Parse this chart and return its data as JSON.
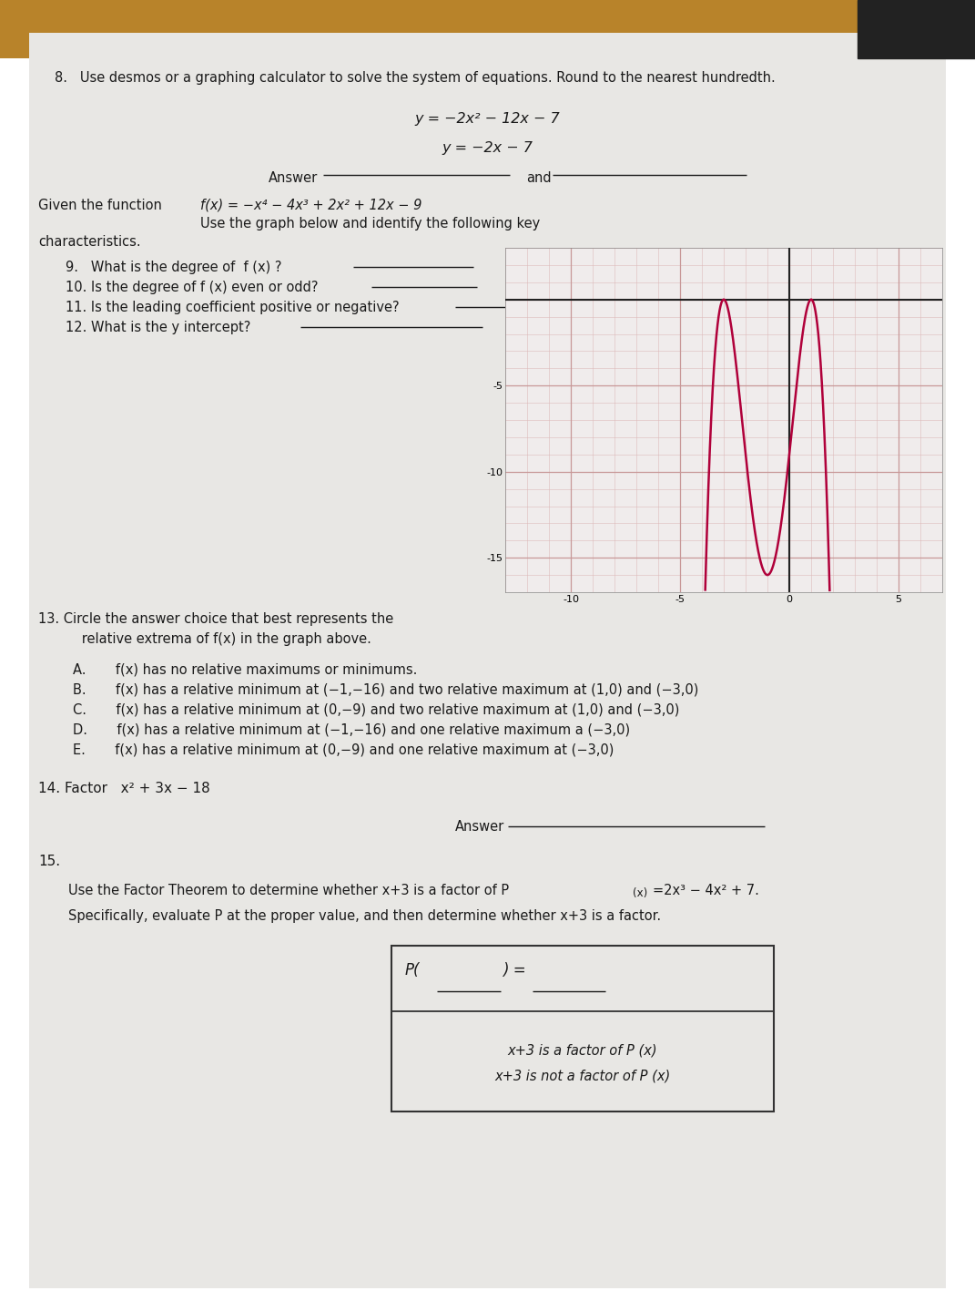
{
  "wood_color": "#b8832a",
  "paper_color": "#e8e7e4",
  "text_color": "#1a1a1a",
  "curve_color": "#b0003a",
  "grid_color": "#ddbaba",
  "axis_color": "#222222",
  "graph_xlim": [
    -13,
    7
  ],
  "graph_ylim": [
    -17,
    3
  ],
  "graph_xticks": [
    -10,
    -5,
    0,
    5
  ],
  "graph_yticks": [
    -15,
    -10,
    -5
  ],
  "q8_header": "8.   Use desmos or a graphing calculator to solve the system of equations. Round to the nearest hundredth.",
  "q8_eq1": "y = −2x² − 12x − 7",
  "q8_eq2": "y = −2x − 7",
  "given_prefix": "Given the function  ",
  "given_func": "f(x) = −x⁴ − 4x³ + 2x² + 12x − 9",
  "given_suffix": "  Use the graph below and identify the following key",
  "characteristics": "characteristics.",
  "q9": "9.   What is the degree of  f (x) ?",
  "q10": "10. Is the degree of f (x) even or odd?",
  "q11": "11. Is the leading coefficient positive or negative?",
  "q12": "12. What is the y intercept?",
  "q13_intro1": "13. Circle the answer choice that best represents the",
  "q13_intro2": "      relative extrema of f(x) in the graph above.",
  "q13_A": "A.       f(x) has no relative maximums or minimums.",
  "q13_B": "B.       f(x) has a relative minimum at (−1,−16) and two relative maximum at (1,0) and (−3,0)",
  "q13_C": "C.       f(x) has a relative minimum at (0,−9) and two relative maximum at (1,0) and (−3,0)",
  "q13_D": "D.       f(x) has a relative minimum at (−1,−16) and one relative maximum a (−3,0)",
  "q13_E": "E.       f(x) has a relative minimum at (0,−9) and one relative maximum at (−3,0)",
  "q14_label": "14. Factor   x² + 3x − 18",
  "q15_label": "15.",
  "q15_line1a": "Use the Factor Theorem to determine whether x+3 is a factor of P",
  "q15_line1b": "(x)",
  "q15_line1c": "=2x³ − 4x² + 7.",
  "q15_line2": "Specifically, evaluate P at the proper value, and then determine whether x+3 is a factor.",
  "q15_box2a": "x+3 is a factor of P (x)",
  "q15_box2b": "x+3 is not a factor of P (x)"
}
